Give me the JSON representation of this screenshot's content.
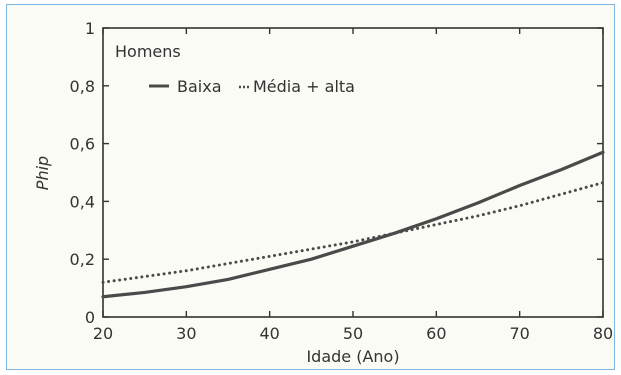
{
  "chart_data": {
    "type": "line",
    "xlabel": "Idade (Ano)",
    "ylabel": "Phip",
    "xlim": [
      20,
      80
    ],
    "ylim": [
      0,
      1
    ],
    "x_ticks": [
      20,
      30,
      40,
      50,
      60,
      70,
      80
    ],
    "x_tick_labels": [
      "20",
      "30",
      "40",
      "50",
      "60",
      "70",
      "80"
    ],
    "y_ticks": [
      0,
      0.2,
      0.4,
      0.6,
      0.8,
      1
    ],
    "y_tick_labels": [
      "0",
      "0,2",
      "0,4",
      "0,6",
      "0,8",
      "1"
    ],
    "grid": false,
    "legend": {
      "title": "Homens",
      "placement": "top-left",
      "entries": [
        "Baixa",
        "Média + alta"
      ]
    },
    "series": [
      {
        "name": "Baixa",
        "style": "solid",
        "color": "#4a4a4a",
        "x": [
          20,
          25,
          30,
          35,
          40,
          45,
          50,
          55,
          60,
          65,
          70,
          75,
          80
        ],
        "y": [
          0.07,
          0.085,
          0.105,
          0.13,
          0.165,
          0.2,
          0.245,
          0.29,
          0.34,
          0.395,
          0.455,
          0.51,
          0.57
        ]
      },
      {
        "name": "Média + alta",
        "style": "dotted",
        "color": "#4a4a4a",
        "x": [
          20,
          25,
          30,
          35,
          40,
          45,
          50,
          55,
          60,
          65,
          70,
          75,
          80
        ],
        "y": [
          0.12,
          0.14,
          0.16,
          0.185,
          0.21,
          0.235,
          0.26,
          0.29,
          0.32,
          0.35,
          0.385,
          0.425,
          0.465
        ]
      }
    ]
  }
}
